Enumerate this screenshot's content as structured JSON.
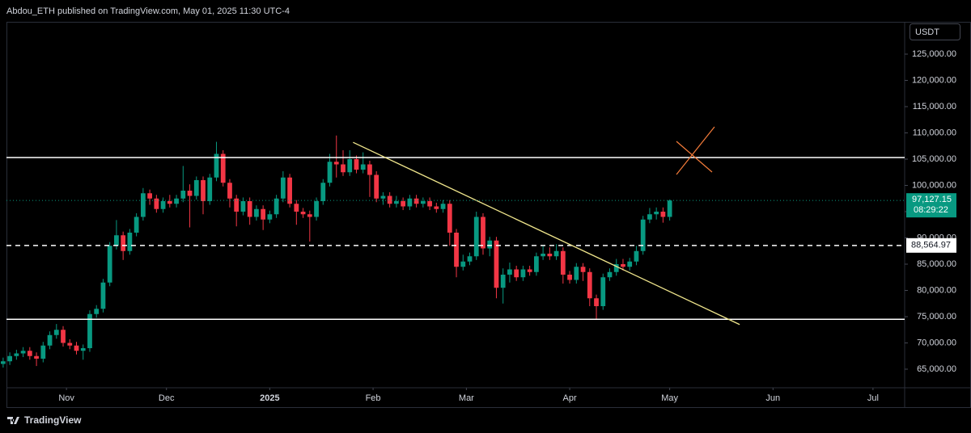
{
  "header": {
    "text": "Abdou_ETH published on TradingView.com, May 01, 2025 11:30 UTC-4"
  },
  "footer": {
    "brand": "TradingView"
  },
  "chart_data": {
    "type": "candlestick",
    "currency": "USDT",
    "x": [
      -19,
      -17,
      -15,
      -13,
      -11,
      -9,
      -7,
      -5,
      -3,
      -1,
      1,
      3,
      5,
      7,
      9,
      11,
      13,
      15,
      17,
      19,
      21,
      23,
      25,
      27,
      29,
      31,
      33,
      35,
      37,
      39,
      41,
      43,
      45,
      47,
      49,
      51,
      53,
      55,
      57,
      59,
      61,
      63,
      65,
      67,
      69,
      71,
      73,
      75,
      77,
      79,
      81,
      83,
      85,
      87,
      89,
      91,
      93,
      95,
      97,
      99,
      101,
      103,
      105,
      107,
      109,
      111,
      113,
      115,
      117,
      119,
      121,
      123,
      125,
      127,
      129,
      131,
      133,
      135,
      137,
      139,
      141,
      143,
      145,
      147,
      149,
      151,
      153,
      155,
      157,
      159,
      161,
      163,
      165,
      167,
      169,
      171,
      173,
      175,
      177,
      179,
      181
    ],
    "open": [
      66000,
      66500,
      67500,
      68000,
      68500,
      67500,
      67000,
      69500,
      71500,
      72500,
      70000,
      69500,
      68500,
      69000,
      75500,
      76500,
      81500,
      88500,
      90500,
      87500,
      91000,
      94000,
      98500,
      97500,
      95500,
      97000,
      96500,
      97500,
      99000,
      98000,
      101000,
      97000,
      101500,
      106000,
      100500,
      97500,
      95000,
      97000,
      94000,
      95500,
      93500,
      94500,
      97500,
      101500,
      96500,
      95000,
      94500,
      94000,
      97000,
      100500,
      104500,
      104000,
      102500,
      105000,
      103000,
      104000,
      102000,
      97500,
      98000,
      96500,
      97000,
      96000,
      97500,
      96500,
      97000,
      96000,
      95500,
      96500,
      91000,
      84500,
      85500,
      86500,
      94000,
      88000,
      89500,
      80500,
      83000,
      84000,
      82500,
      84000,
      83500,
      86500,
      87000,
      86500,
      87500,
      83000,
      82000,
      84500,
      83500,
      78500,
      77000,
      82500,
      83500,
      85000,
      84500,
      85500,
      87500,
      93500,
      94500,
      95000,
      94000
    ],
    "high": [
      67200,
      68200,
      68700,
      69200,
      69200,
      68200,
      70200,
      72200,
      73600,
      73200,
      70700,
      70200,
      69700,
      76200,
      77200,
      82200,
      89200,
      93400,
      91200,
      91700,
      94700,
      99500,
      99200,
      98200,
      97700,
      98200,
      98200,
      103700,
      100200,
      101700,
      101700,
      102200,
      108300,
      106700,
      101200,
      98200,
      97700,
      97700,
      96200,
      96200,
      95200,
      98200,
      102700,
      102200,
      97200,
      95700,
      95200,
      97700,
      101200,
      106000,
      109500,
      106700,
      106700,
      105700,
      106300,
      104700,
      102700,
      98700,
      98700,
      98000,
      97700,
      98200,
      98200,
      97700,
      97700,
      96700,
      97200,
      97200,
      91700,
      86800,
      87200,
      95000,
      94700,
      90200,
      90200,
      84200,
      85300,
      84700,
      84700,
      84700,
      87200,
      88500,
      88200,
      88800,
      88200,
      83700,
      85200,
      85200,
      84200,
      79200,
      83200,
      84200,
      86000,
      86000,
      86200,
      88500,
      94200,
      95700,
      95800,
      95800,
      97300
    ],
    "low": [
      65300,
      65800,
      66800,
      67300,
      66800,
      65600,
      66300,
      68800,
      70800,
      69300,
      68800,
      67800,
      66800,
      68300,
      74800,
      75800,
      80800,
      87800,
      85800,
      86800,
      90300,
      93300,
      96300,
      94800,
      94800,
      95800,
      95800,
      96800,
      92000,
      97300,
      94500,
      96300,
      100800,
      99800,
      95800,
      92200,
      94300,
      92500,
      93300,
      91500,
      92800,
      93800,
      96800,
      95800,
      92500,
      93800,
      89300,
      93300,
      96300,
      99800,
      101500,
      101800,
      101800,
      102300,
      102300,
      97800,
      96800,
      96300,
      95800,
      95800,
      95300,
      95300,
      95800,
      95800,
      95300,
      94800,
      94800,
      88500,
      82500,
      83800,
      84800,
      85800,
      86800,
      86500,
      78500,
      77500,
      81500,
      81800,
      81800,
      82800,
      82800,
      85800,
      85800,
      85800,
      81300,
      81300,
      81300,
      81800,
      77000,
      74500,
      76300,
      81800,
      82800,
      83800,
      83800,
      84800,
      86800,
      92800,
      93500,
      92900,
      93300
    ],
    "close": [
      66500,
      67500,
      68000,
      68500,
      67500,
      67000,
      69500,
      71500,
      72500,
      70000,
      69500,
      68500,
      69000,
      75500,
      76500,
      81500,
      88500,
      90500,
      87500,
      91000,
      94000,
      98500,
      97500,
      95500,
      97000,
      96500,
      97500,
      99000,
      98000,
      101000,
      97000,
      101500,
      106000,
      100500,
      97500,
      95000,
      97000,
      94000,
      95500,
      93500,
      94500,
      97500,
      101500,
      96500,
      95000,
      94500,
      94000,
      97000,
      100500,
      104500,
      104000,
      102500,
      105000,
      103000,
      104000,
      102000,
      97500,
      98000,
      96500,
      97000,
      96000,
      97500,
      96500,
      97000,
      96000,
      95500,
      96500,
      91000,
      84500,
      85500,
      86500,
      94000,
      88000,
      89500,
      80500,
      83000,
      84000,
      82500,
      84000,
      83500,
      86500,
      87000,
      86500,
      87500,
      83000,
      82000,
      84500,
      83500,
      78500,
      77000,
      82500,
      83500,
      85000,
      84500,
      85500,
      87500,
      93500,
      94500,
      95000,
      94000,
      97127.15
    ],
    "up_color": "#089981",
    "down_color": "#f23645",
    "xlim": [
      -18,
      251.5
    ],
    "xticks": [
      {
        "value": 0,
        "label": "Nov"
      },
      {
        "value": 30,
        "label": "Dec"
      },
      {
        "value": 61,
        "label": "2025"
      },
      {
        "value": 92,
        "label": "Feb"
      },
      {
        "value": 120,
        "label": "Mar"
      },
      {
        "value": 151,
        "label": "Apr"
      },
      {
        "value": 181,
        "label": "May"
      },
      {
        "value": 212,
        "label": "Jun"
      },
      {
        "value": 242,
        "label": "Jul"
      }
    ],
    "ylim": [
      61460,
      131000
    ],
    "yticks": [
      {
        "value": 65000,
        "label": "65,000.00"
      },
      {
        "value": 70000,
        "label": "70,000.00"
      },
      {
        "value": 75000,
        "label": "75,000.00"
      },
      {
        "value": 80000,
        "label": "80,000.00"
      },
      {
        "value": 85000,
        "label": "85,000.00"
      },
      {
        "value": 90000,
        "label": "90,000.00"
      },
      {
        "value": 95000,
        "label": "95,000.00"
      },
      {
        "value": 100000,
        "label": "100,000.00"
      },
      {
        "value": 105000,
        "label": "105,000.00"
      },
      {
        "value": 110000,
        "label": "110,000.00"
      },
      {
        "value": 115000,
        "label": "115,000.00"
      },
      {
        "value": 120000,
        "label": "120,000.00"
      },
      {
        "value": 125000,
        "label": "125,000.00"
      }
    ],
    "levels": [
      {
        "value": 105300,
        "style": "solid"
      },
      {
        "value": 88564.97,
        "label": "88,564.97",
        "style": "dashed"
      },
      {
        "value": 74500,
        "style": "solid"
      }
    ],
    "trendline": {
      "x": [
        86,
        202
      ],
      "y": [
        108200,
        73500
      ],
      "color": "#f0e68c"
    },
    "last_price": {
      "value": 97127.15,
      "label": "97,127.15",
      "countdown": "08:29:22",
      "color": "#089981"
    }
  }
}
